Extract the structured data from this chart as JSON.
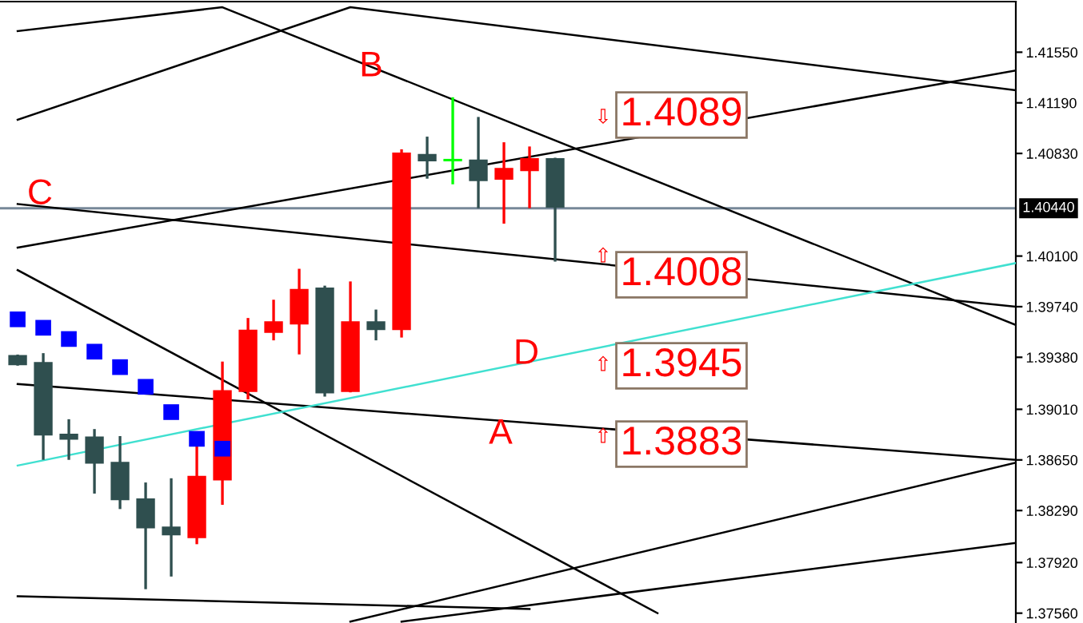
{
  "chart_data": {
    "type": "candlestick",
    "categories": [
      null,
      null,
      null,
      null,
      null,
      null,
      null,
      null,
      null,
      null,
      null,
      null,
      null,
      null,
      null,
      null,
      null,
      null,
      null,
      null,
      null,
      null,
      null,
      null,
      null,
      null,
      null,
      null,
      null,
      null,
      null,
      null,
      null,
      null,
      null,
      null,
      null,
      null,
      null,
      null
    ],
    "ohlc": [
      [
        1.3939,
        1.3939,
        1.3933,
        1.3933
      ],
      [
        1.3934,
        1.394,
        1.3866,
        1.3883
      ],
      [
        1.3883,
        1.3893,
        1.3866,
        1.388
      ],
      [
        1.3881,
        1.3886,
        1.3842,
        1.3863
      ],
      [
        1.3863,
        1.3881,
        1.3831,
        1.3837
      ],
      [
        1.3837,
        1.3848,
        1.3774,
        1.3817
      ],
      [
        1.3817,
        1.3851,
        1.3783,
        1.3812
      ],
      [
        1.381,
        1.3876,
        1.3806,
        1.3853
      ],
      [
        1.3851,
        1.3934,
        1.3834,
        1.3914
      ],
      [
        1.3914,
        1.3965,
        1.3909,
        1.3957
      ],
      [
        1.3956,
        1.3978,
        1.3951,
        1.3963
      ],
      [
        1.3962,
        1.4,
        1.3941,
        1.3986
      ],
      [
        1.3987,
        1.3988,
        1.3911,
        1.3913
      ],
      [
        1.3914,
        1.3991,
        1.3914,
        1.3963
      ],
      [
        1.3963,
        1.3971,
        1.3951,
        1.3958
      ],
      [
        1.3958,
        1.4085,
        1.3953,
        1.4083
      ],
      [
        1.4082,
        1.4094,
        1.4066,
        1.4078
      ],
      [
        1.4078,
        1.4122,
        1.4062,
        1.4078
      ],
      [
        1.4078,
        1.4108,
        1.4045,
        1.4064
      ],
      [
        1.4065,
        1.409,
        1.4034,
        1.4072
      ],
      [
        1.4071,
        1.4087,
        1.4045,
        1.4079
      ],
      [
        1.4079,
        1.4079,
        1.4007,
        1.4045
      ],
      null,
      null,
      null,
      null,
      null,
      null,
      null,
      null,
      null,
      null,
      null,
      null,
      null,
      null,
      null,
      null,
      null,
      null
    ],
    "colors": [
      "#2f4f4f",
      "#2f4f4f",
      "#2f4f4f",
      "#2f4f4f",
      "#2f4f4f",
      "#2f4f4f",
      "#2f4f4f",
      "#ff0000",
      "#ff0000",
      "#ff0000",
      "#ff0000",
      "#ff0000",
      "#2f4f4f",
      "#ff0000",
      "#2f4f4f",
      "#ff0000",
      "#2f4f4f",
      "#00ff00",
      "#2f4f4f",
      "#ff0000",
      "#ff0000",
      "#2f4f4f",
      null,
      null,
      null,
      null,
      null,
      null,
      null,
      null,
      null,
      null,
      null,
      null,
      null,
      null,
      null,
      null,
      null,
      null
    ],
    "series": [
      {
        "type": "scatter",
        "marker": "square",
        "color": "#0000ff",
        "values": [
          1.3965,
          1.3959,
          1.3951,
          1.3942,
          1.3931,
          1.3917,
          1.3899,
          1.388,
          1.3873,
          null,
          null,
          null,
          null,
          null,
          null,
          null,
          null,
          null,
          null,
          null,
          null,
          null,
          null,
          null,
          null,
          null,
          null,
          null,
          null,
          null,
          null,
          null,
          null,
          null,
          null,
          null,
          null,
          null,
          null,
          null
        ]
      },
      {
        "type": "line",
        "color": "#000000",
        "values": [
          1.417,
          null,
          null,
          null,
          null,
          null,
          null,
          null,
          1.4187,
          null,
          null,
          null,
          null,
          null,
          null,
          null,
          null,
          null,
          null,
          null,
          null,
          null,
          null,
          null,
          null,
          null,
          null,
          null,
          null,
          null,
          null,
          null,
          null,
          null,
          null,
          null,
          null,
          null,
          null,
          1.3961
        ]
      },
      {
        "type": "line",
        "color": "#000000",
        "values": [
          1.4107,
          null,
          null,
          null,
          null,
          null,
          null,
          null,
          null,
          null,
          null,
          null,
          null,
          1.4187,
          null,
          null,
          null,
          null,
          null,
          null,
          null,
          null,
          null,
          null,
          null,
          null,
          null,
          null,
          null,
          null,
          null,
          null,
          null,
          null,
          null,
          null,
          null,
          null,
          null,
          1.4128
        ]
      },
      {
        "type": "line",
        "color": "#000000",
        "values": [
          1.4016,
          null,
          null,
          null,
          null,
          null,
          null,
          null,
          null,
          null,
          null,
          null,
          null,
          null,
          null,
          null,
          null,
          null,
          null,
          null,
          null,
          null,
          null,
          null,
          null,
          null,
          null,
          null,
          null,
          null,
          null,
          null,
          null,
          null,
          null,
          null,
          null,
          null,
          null,
          1.4142
        ]
      },
      {
        "type": "line",
        "color": "#000000",
        "values": [
          1.4047,
          null,
          null,
          null,
          null,
          null,
          null,
          null,
          null,
          null,
          null,
          null,
          null,
          null,
          null,
          null,
          null,
          null,
          null,
          null,
          null,
          null,
          null,
          null,
          null,
          null,
          null,
          null,
          null,
          null,
          null,
          null,
          null,
          null,
          null,
          null,
          null,
          null,
          null,
          1.3974
        ]
      },
      {
        "type": "line",
        "color": "#000000",
        "values": [
          1.4,
          null,
          null,
          null,
          null,
          null,
          null,
          null,
          null,
          null,
          null,
          null,
          null,
          null,
          null,
          null,
          null,
          null,
          null,
          null,
          null,
          null,
          null,
          null,
          null,
          1.3756,
          null,
          null,
          null,
          null,
          null,
          null,
          null,
          null,
          null,
          null,
          null,
          null,
          null,
          null
        ]
      },
      {
        "type": "line",
        "color": "#000000",
        "values": [
          1.3919,
          null,
          null,
          null,
          null,
          null,
          null,
          null,
          null,
          null,
          null,
          null,
          null,
          null,
          null,
          null,
          null,
          null,
          null,
          null,
          null,
          null,
          null,
          null,
          null,
          null,
          null,
          null,
          null,
          null,
          null,
          null,
          null,
          null,
          null,
          null,
          null,
          null,
          null,
          1.3865
        ]
      },
      {
        "type": "line",
        "color": "#40e0d0",
        "values": [
          1.3861,
          null,
          null,
          null,
          null,
          null,
          null,
          null,
          null,
          null,
          null,
          null,
          null,
          null,
          null,
          null,
          null,
          null,
          null,
          null,
          null,
          null,
          null,
          null,
          null,
          null,
          null,
          null,
          null,
          null,
          null,
          null,
          null,
          null,
          null,
          null,
          null,
          null,
          null,
          1.4005
        ]
      },
      {
        "type": "line",
        "color": "#000000",
        "values": [
          1.3768,
          null,
          null,
          null,
          null,
          null,
          null,
          null,
          null,
          null,
          null,
          null,
          null,
          null,
          null,
          null,
          null,
          null,
          null,
          null,
          1.3759,
          null,
          null,
          null,
          null,
          null,
          null,
          null,
          null,
          null,
          null,
          null,
          null,
          null,
          null,
          null,
          null,
          null,
          null,
          null
        ]
      },
      {
        "type": "line",
        "color": "#000000",
        "values": [
          null,
          null,
          null,
          null,
          null,
          null,
          null,
          null,
          null,
          null,
          null,
          null,
          null,
          1.375,
          null,
          null,
          null,
          null,
          null,
          null,
          null,
          null,
          null,
          null,
          null,
          null,
          null,
          null,
          null,
          null,
          null,
          null,
          null,
          null,
          null,
          null,
          null,
          null,
          null,
          1.3863
        ]
      },
      {
        "type": "line",
        "color": "#000000",
        "values": [
          null,
          null,
          null,
          null,
          null,
          null,
          null,
          null,
          null,
          null,
          null,
          null,
          null,
          null,
          null,
          1.375,
          null,
          null,
          null,
          null,
          null,
          null,
          null,
          null,
          null,
          null,
          null,
          null,
          null,
          null,
          null,
          null,
          null,
          null,
          null,
          null,
          null,
          null,
          null,
          1.3806
        ]
      }
    ],
    "ylim": [
      1.3749,
      1.4191
    ],
    "yticks": [
      {
        "value": 1.4155,
        "label": "1.41550"
      },
      {
        "value": 1.4119,
        "label": "1.41190"
      },
      {
        "value": 1.4083,
        "label": "1.40830"
      },
      {
        "value": 1.401,
        "label": "1.40100"
      },
      {
        "value": 1.3974,
        "label": "1.39740"
      },
      {
        "value": 1.3938,
        "label": "1.39380"
      },
      {
        "value": 1.3901,
        "label": "1.39010"
      },
      {
        "value": 1.3865,
        "label": "1.38650"
      },
      {
        "value": 1.3829,
        "label": "1.38290"
      },
      {
        "value": 1.3792,
        "label": "1.37920"
      },
      {
        "value": 1.3756,
        "label": "1.37560"
      }
    ],
    "ref_lines": [
      {
        "axis": "y",
        "value": 1.4044,
        "label": "1.40440",
        "color": "#778899"
      }
    ],
    "annotations": [
      "A",
      "B",
      "C",
      "D",
      "1.4089",
      "1.4008",
      "1.3945",
      "1.3883",
      "⇩",
      "⇧",
      "⇧",
      "⇧"
    ],
    "grid": false,
    "legend": false,
    "tick_labels": "y"
  }
}
